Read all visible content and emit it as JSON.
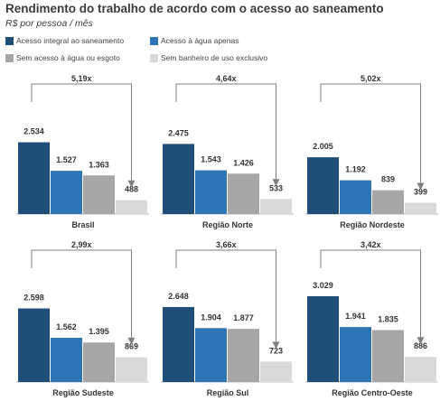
{
  "title": "Rendimento do trabalho de acordo com o acesso ao saneamento",
  "subtitle": "R$ por pessoa / mês",
  "legend": [
    {
      "label": "Acesso integral ao saneamento",
      "color": "#1f4e79"
    },
    {
      "label": "Acesso à água apenas",
      "color": "#2e75b6"
    },
    {
      "label": "Sem acesso à água ou esgoto",
      "color": "#a6a6a6"
    },
    {
      "label": "Sem banheiro de uso exclusivo",
      "color": "#d9d9d9"
    }
  ],
  "chart_data": [
    {
      "type": "bar",
      "title": "Brasil",
      "series": [
        "Acesso integral ao saneamento",
        "Acesso à água apenas",
        "Sem acesso à água ou esgoto",
        "Sem banheiro de uso exclusivo"
      ],
      "values": [
        2534,
        1527,
        1363,
        488
      ],
      "value_labels": [
        "2.534",
        "1.527",
        "1.363",
        "488"
      ],
      "ratio_label": "5,19x"
    },
    {
      "type": "bar",
      "title": "Região Norte",
      "series": [
        "Acesso integral ao saneamento",
        "Acesso à água apenas",
        "Sem acesso à água ou esgoto",
        "Sem banheiro de uso exclusivo"
      ],
      "values": [
        2475,
        1543,
        1426,
        533
      ],
      "value_labels": [
        "2.475",
        "1.543",
        "1.426",
        "533"
      ],
      "ratio_label": "4,64x"
    },
    {
      "type": "bar",
      "title": "Região Nordeste",
      "series": [
        "Acesso integral ao saneamento",
        "Acesso à água apenas",
        "Sem acesso à água ou esgoto",
        "Sem banheiro de uso exclusivo"
      ],
      "values": [
        2005,
        1192,
        839,
        399
      ],
      "value_labels": [
        "2.005",
        "1.192",
        "839",
        "399"
      ],
      "ratio_label": "5,02x"
    },
    {
      "type": "bar",
      "title": "Região Sudeste",
      "series": [
        "Acesso integral ao saneamento",
        "Acesso à água apenas",
        "Sem acesso à água ou esgoto",
        "Sem banheiro de uso exclusivo"
      ],
      "values": [
        2598,
        1562,
        1395,
        869
      ],
      "value_labels": [
        "2.598",
        "1.562",
        "1.395",
        "869"
      ],
      "ratio_label": "2,99x"
    },
    {
      "type": "bar",
      "title": "Região Sul",
      "series": [
        "Acesso integral ao saneamento",
        "Acesso à água apenas",
        "Sem acesso à água ou esgoto",
        "Sem banheiro de uso exclusivo"
      ],
      "values": [
        2648,
        1904,
        1877,
        723
      ],
      "value_labels": [
        "2.648",
        "1.904",
        "1.877",
        "723"
      ],
      "ratio_label": "3,66x"
    },
    {
      "type": "bar",
      "title": "Região Centro-Oeste",
      "series": [
        "Acesso integral ao saneamento",
        "Acesso à água apenas",
        "Sem acesso à água ou esgoto",
        "Sem banheiro de uso exclusivo"
      ],
      "values": [
        3029,
        1941,
        1835,
        886
      ],
      "value_labels": [
        "3.029",
        "1.941",
        "1.835",
        "886"
      ],
      "ratio_label": "3,42x"
    }
  ]
}
